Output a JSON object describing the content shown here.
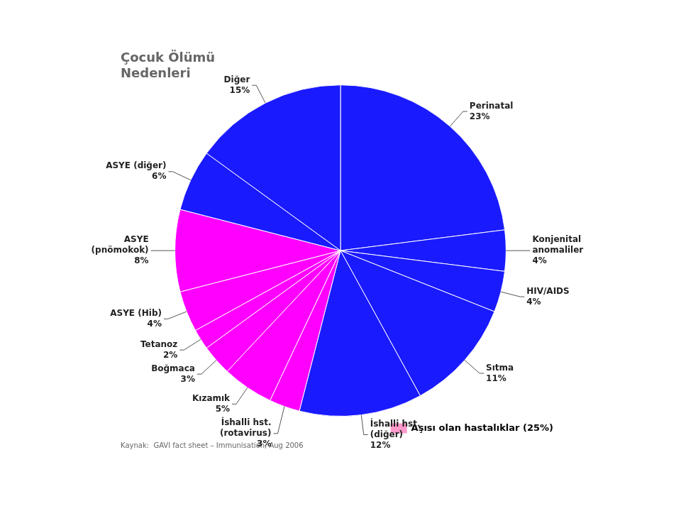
{
  "chart_data": {
    "type": "pie",
    "title": "Çocuk Ölümü\nNedenleri",
    "categories": [
      "Perinatal",
      "Konjenital\nanomaliler",
      "HIV/AIDS",
      "Sıtma",
      "İshalli hst.\n(diğer)",
      "İshalli hst.\n(rotavirus)",
      "Kızamık",
      "Boğmaca",
      "Tetanoz",
      "ASYE (Hib)",
      "ASYE\n(pnömokok)",
      "ASYE (diğer)",
      "Diğer"
    ],
    "values": [
      23,
      4,
      4,
      11,
      12,
      3,
      5,
      3,
      2,
      4,
      8,
      6,
      15
    ],
    "value_labels": [
      "23%",
      "4%",
      "4%",
      "11%",
      "12%",
      "3%",
      "5%",
      "3%",
      "2%",
      "4%",
      "8%",
      "6%",
      "15%"
    ],
    "data_labels": true,
    "colors": [
      "#1a1aff",
      "#1a1aff",
      "#1a1aff",
      "#1a1aff",
      "#1a1aff",
      "#ff00ff",
      "#ff00ff",
      "#ff00ff",
      "#ff00ff",
      "#ff00ff",
      "#ff00ff",
      "#1a1aff",
      "#1a1aff"
    ],
    "legend": "lower right",
    "legend_entries": [
      {
        "label": "Aşısı olan hastalıklar (25%)",
        "color": "#ff99cc"
      }
    ],
    "annotations": [
      "Kaynak:  GAVI fact sheet – Immunisation, Aug 2006"
    ]
  }
}
